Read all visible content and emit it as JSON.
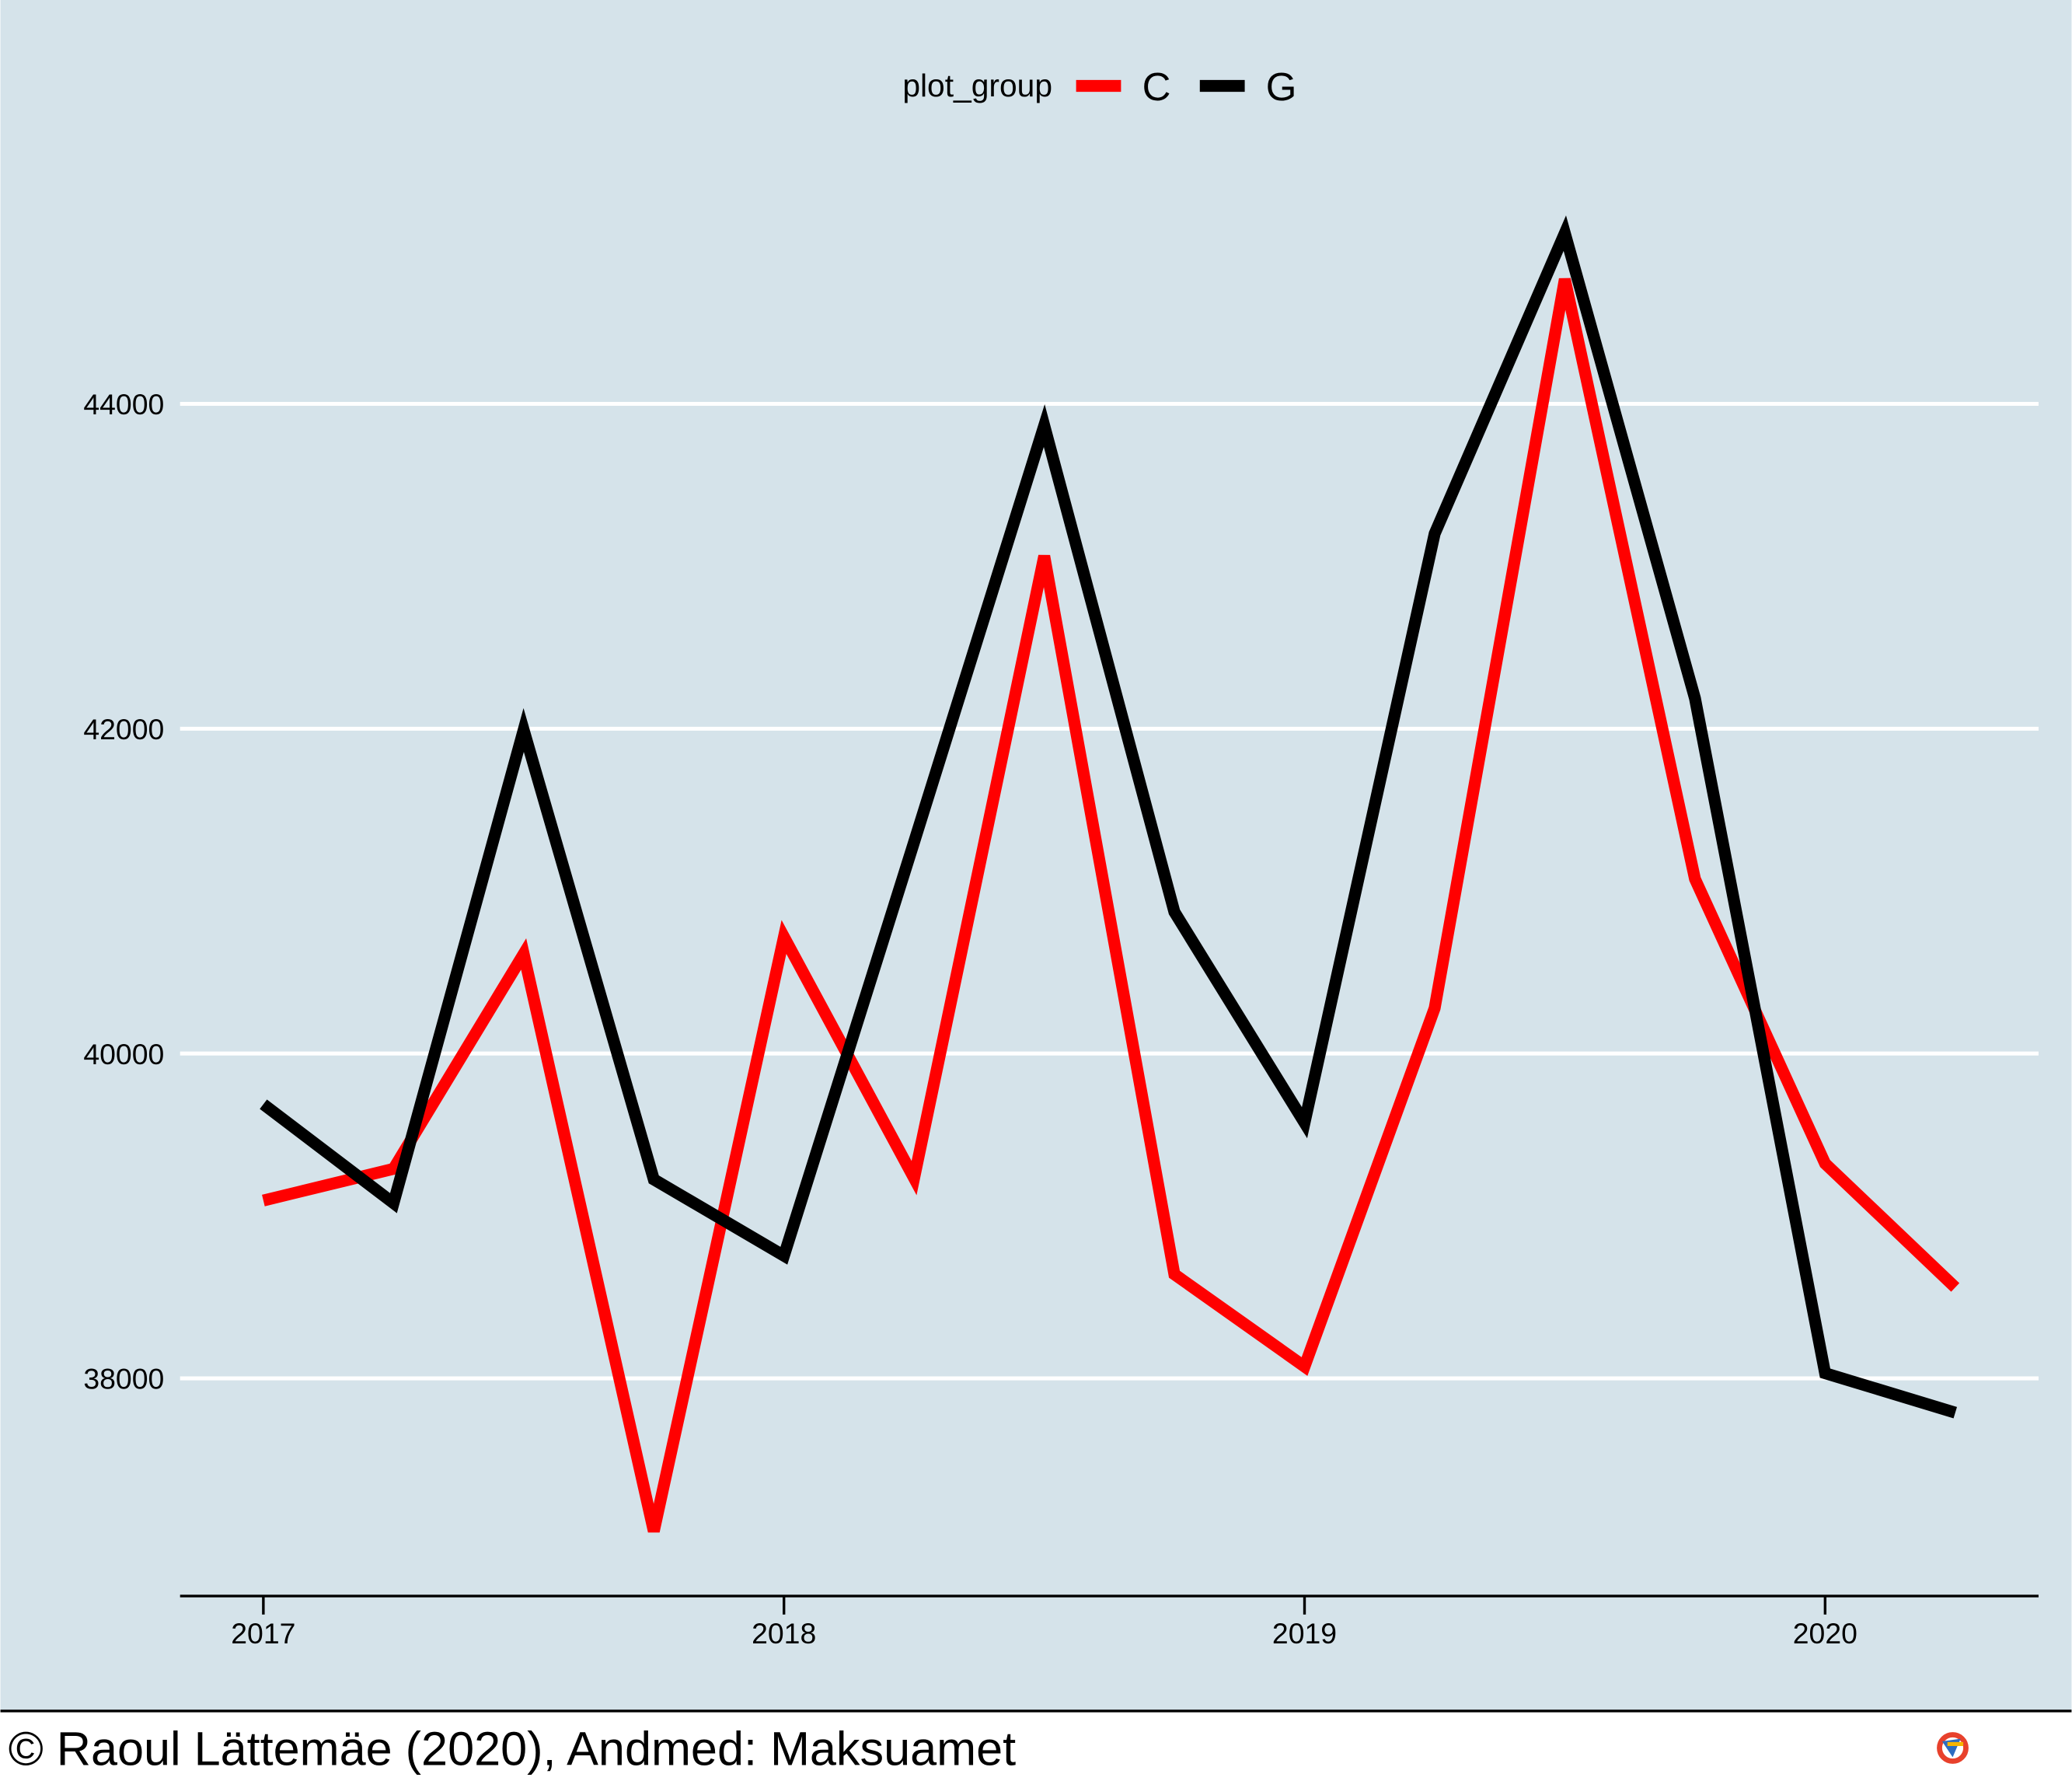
{
  "chart_data": {
    "type": "line",
    "legend_title": "plot_group",
    "legend_position": "top",
    "x": [
      2017,
      2017.25,
      2017.5,
      2017.75,
      2018,
      2018.25,
      2018.5,
      2018.75,
      2019,
      2019.25,
      2019.5,
      2019.75,
      2020,
      2020.25
    ],
    "series": [
      {
        "name": "C",
        "color": "#ff0000",
        "values": [
          39095,
          39290,
          40613,
          37059,
          40718,
          39233,
          43063,
          38641,
          38073,
          40280,
          44767,
          41075,
          39323,
          38560
        ]
      },
      {
        "name": "G",
        "color": "#000000",
        "values": [
          39688,
          39079,
          41992,
          39225,
          38755,
          41302,
          43866,
          40872,
          39574,
          43201,
          45051,
          42187,
          38032,
          37789
        ]
      }
    ],
    "xlim": [
      2016.84,
      2020.41
    ],
    "xticks": [
      2017,
      2018,
      2019,
      2020
    ],
    "ylim": [
      36660,
      45250
    ],
    "yticks": [
      38000,
      40000,
      42000,
      44000
    ],
    "grid": true,
    "caption": "© Raoul Lättemäe (2020), Andmed: Maksuamet"
  }
}
